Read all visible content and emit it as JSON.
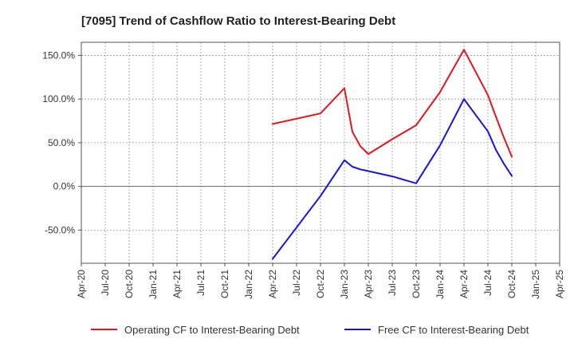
{
  "chart_data": {
    "type": "line",
    "title": "[7095]  Trend of Cashflow Ratio to Interest-Bearing Debt",
    "xlabel": "",
    "ylabel": "",
    "ylim": [
      -88,
      165
    ],
    "y_ticks": [
      150,
      100,
      50,
      0,
      -50
    ],
    "y_tick_labels": [
      "150.0%",
      "100.0%",
      "50.0%",
      "0.0%",
      "-50.0%"
    ],
    "x_start": "Apr-20",
    "x_end": "Apr-25",
    "x_tick_labels": [
      "Apr-20",
      "Jul-20",
      "Oct-20",
      "Jan-21",
      "Apr-21",
      "Jul-21",
      "Oct-21",
      "Jan-22",
      "Apr-22",
      "Jul-22",
      "Oct-22",
      "Jan-23",
      "Apr-23",
      "Jul-23",
      "Oct-23",
      "Jan-24",
      "Apr-24",
      "Jul-24",
      "Oct-24",
      "Jan-25",
      "Apr-25"
    ],
    "grid": true,
    "legend_position": "bottom",
    "series": [
      {
        "name": "Operating CF to Interest-Bearing Debt",
        "color": "#e8141b",
        "points": [
          [
            "Apr-22",
            71.5
          ],
          [
            "Oct-22",
            83.5
          ],
          [
            "Jan-23",
            112.5
          ],
          [
            "Feb-23",
            62.5
          ],
          [
            "Mar-23",
            46
          ],
          [
            "Apr-23",
            37
          ],
          [
            "Jul-23",
            54
          ],
          [
            "Oct-23",
            70
          ],
          [
            "Jan-24",
            108
          ],
          [
            "Apr-24",
            156.5
          ],
          [
            "Jul-24",
            104.5
          ],
          [
            "Aug-24",
            80
          ],
          [
            "Sep-24",
            56
          ],
          [
            "Oct-24",
            34
          ]
        ]
      },
      {
        "name": "Free CF to Interest-Bearing Debt",
        "color": "#1414e6",
        "points": [
          [
            "Apr-22",
            -83
          ],
          [
            "Oct-22",
            -11
          ],
          [
            "Jan-23",
            30
          ],
          [
            "Feb-23",
            22.5
          ],
          [
            "Mar-23",
            19.5
          ],
          [
            "Apr-23",
            17.5
          ],
          [
            "Jul-23",
            11.5
          ],
          [
            "Oct-23",
            3.5
          ],
          [
            "Jan-24",
            47
          ],
          [
            "Apr-24",
            100
          ],
          [
            "Jul-24",
            63
          ],
          [
            "Aug-24",
            42
          ],
          [
            "Sep-24",
            26
          ],
          [
            "Oct-24",
            12
          ]
        ]
      }
    ]
  }
}
